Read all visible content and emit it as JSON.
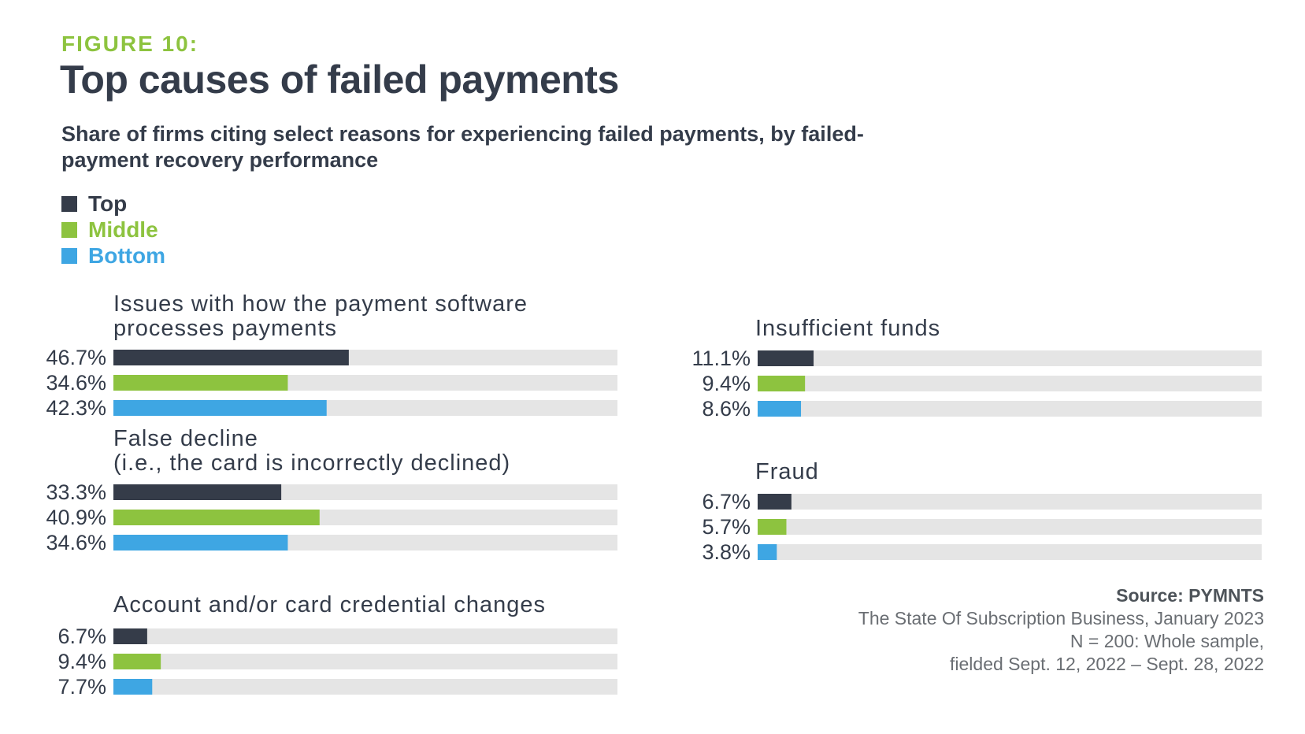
{
  "figure_label": "FIGURE 10:",
  "title": "Top causes of failed payments",
  "subtitle": "Share of firms citing select reasons for experiencing failed payments, by failed-payment recovery performance",
  "colors": {
    "top": "#353c49",
    "middle": "#8dc33f",
    "bottom": "#3ea6e3",
    "track": "#e5e5e5"
  },
  "source": {
    "heading": "Source: PYMNTS",
    "line1": "The State Of Subscription Business, January 2023",
    "line2": "N = 200: Whole sample,",
    "line3": "fielded Sept. 12, 2022 – Sept. 28, 2022"
  },
  "chart_data": {
    "type": "bar",
    "orientation": "horizontal",
    "xlim": [
      0,
      100
    ],
    "series": [
      {
        "name": "Top",
        "color": "#353c49"
      },
      {
        "name": "Middle",
        "color": "#8dc33f"
      },
      {
        "name": "Bottom",
        "color": "#3ea6e3"
      }
    ],
    "groups": [
      {
        "category": "Issues with how the payment software\nprocesses payments",
        "values": [
          46.7,
          34.6,
          42.3
        ],
        "labels": [
          "46.7%",
          "34.6%",
          "42.3%"
        ]
      },
      {
        "category": "False decline\n(i.e., the card is incorrectly declined)",
        "values": [
          33.3,
          40.9,
          34.6
        ],
        "labels": [
          "33.3%",
          "40.9%",
          "34.6%"
        ]
      },
      {
        "category": "Account and/or card credential changes",
        "values": [
          6.7,
          9.4,
          7.7
        ],
        "labels": [
          "6.7%",
          "9.4%",
          "7.7%"
        ]
      },
      {
        "category": "Insufficient funds",
        "values": [
          11.1,
          9.4,
          8.6
        ],
        "labels": [
          "11.1%",
          "9.4%",
          "8.6%"
        ]
      },
      {
        "category": "Fraud",
        "values": [
          6.7,
          5.7,
          3.8
        ],
        "labels": [
          "6.7%",
          "5.7%",
          "3.8%"
        ]
      }
    ]
  }
}
